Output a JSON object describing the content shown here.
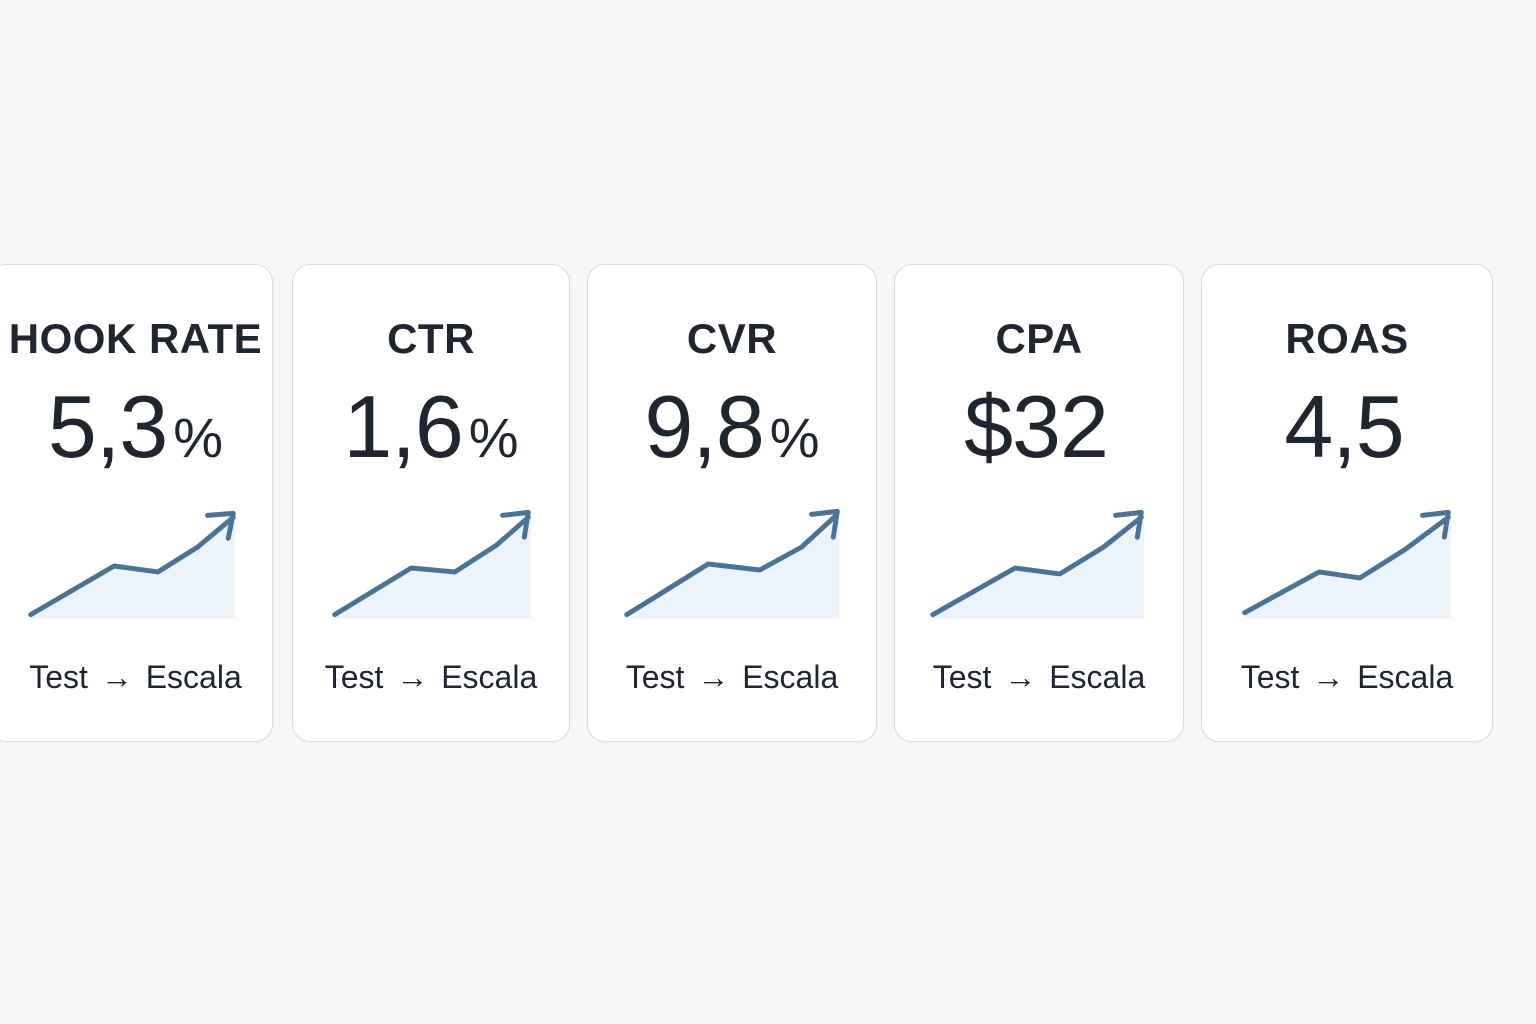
{
  "colors": {
    "background": "#f7f7f7",
    "card": "#ffffff",
    "text": "#1f2630",
    "trend_line": "#4b7396",
    "trend_fill": "#edf3fb"
  },
  "cards": [
    {
      "title": "HOOK RATE",
      "value": "5,3",
      "unit": "%",
      "caption_from": "Test",
      "caption_arrow": "→",
      "caption_to": "Escala",
      "icon": "trend-up-icon"
    },
    {
      "title": "CTR",
      "value": "1,6",
      "unit": "%",
      "caption_from": "Test",
      "caption_arrow": "→",
      "caption_to": "Escala",
      "icon": "trend-up-icon"
    },
    {
      "title": "CVR",
      "value": "9,8",
      "unit": "%",
      "caption_from": "Test",
      "caption_arrow": "→",
      "caption_to": "Escala",
      "icon": "trend-up-icon"
    },
    {
      "title": "CPA",
      "value": "$32",
      "unit": "",
      "caption_from": "Test",
      "caption_arrow": "→",
      "caption_to": "Escala",
      "icon": "trend-up-icon"
    },
    {
      "title": "ROAS",
      "value": "4,5",
      "unit": "",
      "caption_from": "Test",
      "caption_arrow": "→",
      "caption_to": "Escala",
      "icon": "trend-up-icon"
    }
  ]
}
